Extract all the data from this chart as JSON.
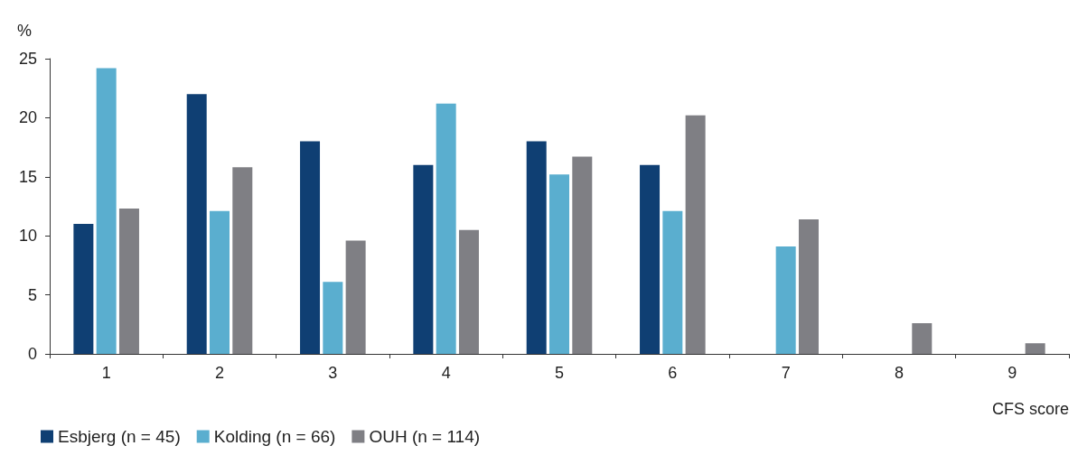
{
  "chart_data": {
    "type": "bar",
    "ylabel": "%",
    "xlabel": "CFS score",
    "categories": [
      "1",
      "2",
      "3",
      "4",
      "5",
      "6",
      "7",
      "8",
      "9"
    ],
    "series": [
      {
        "name": "Esbjerg (n = 45)",
        "color": "#0f3f73",
        "values": [
          11,
          22,
          18,
          16,
          18,
          16,
          0,
          0,
          0
        ]
      },
      {
        "name": "Kolding (n = 66)",
        "color": "#5aaecf",
        "values": [
          24.2,
          12.1,
          6.1,
          21.2,
          15.2,
          12.1,
          9.1,
          0,
          0
        ]
      },
      {
        "name": "OUH (n = 114)",
        "color": "#7f7f84",
        "values": [
          12.3,
          15.8,
          9.6,
          10.5,
          16.7,
          20.2,
          11.4,
          2.6,
          0.9
        ]
      }
    ],
    "ylim": [
      0,
      25
    ],
    "yticks": [
      0,
      5,
      10,
      15,
      20,
      25
    ],
    "grid": false,
    "legend": "bottom left"
  }
}
